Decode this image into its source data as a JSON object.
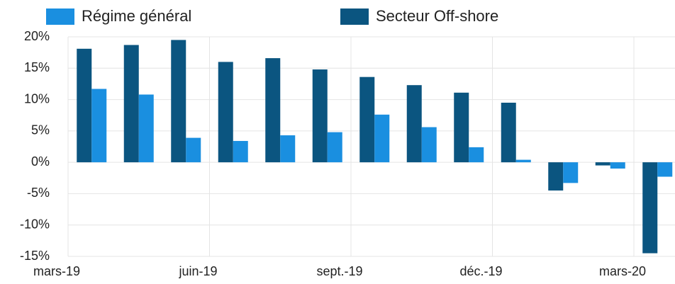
{
  "chart_data": {
    "type": "bar",
    "categories": [
      "mars-19",
      null,
      null,
      "juin-19",
      null,
      null,
      "sept.-19",
      null,
      null,
      "déc.-19",
      null,
      null,
      "mars-20"
    ],
    "series": [
      {
        "name": "Régime général",
        "color": "#1a8fe0",
        "values": [
          11.7,
          10.8,
          3.9,
          3.4,
          4.3,
          4.8,
          7.6,
          5.6,
          2.4,
          0.4,
          -3.3,
          -1.0,
          -2.3
        ]
      },
      {
        "name": "Secteur Off-shore",
        "color": "#0b5580",
        "values": [
          18.1,
          18.7,
          19.5,
          16.0,
          16.6,
          14.8,
          13.6,
          12.3,
          11.1,
          9.5,
          -4.5,
          -0.5,
          -14.5
        ]
      }
    ],
    "ylim": [
      -15,
      20
    ],
    "yticks": [
      {
        "value": -15,
        "label": "-15%"
      },
      {
        "value": -10,
        "label": "-10%"
      },
      {
        "value": -5,
        "label": "-5%"
      },
      {
        "value": 0,
        "label": "0%"
      },
      {
        "value": 5,
        "label": "5%"
      },
      {
        "value": 10,
        "label": "10%"
      },
      {
        "value": 15,
        "label": "15%"
      },
      {
        "value": 20,
        "label": "20%"
      }
    ],
    "grid": true
  }
}
